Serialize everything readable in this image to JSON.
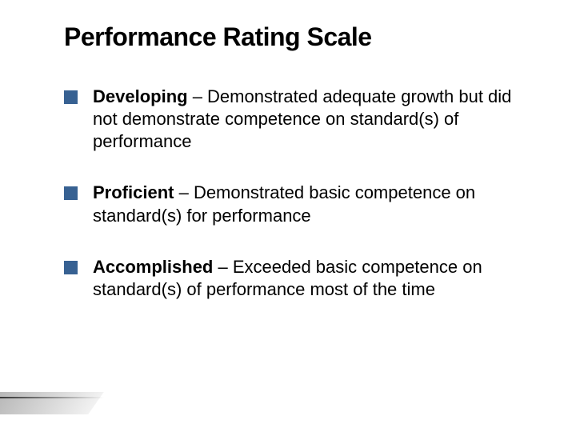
{
  "slide": {
    "title": "Performance Rating Scale",
    "title_color": "#000000",
    "title_fontsize": 32,
    "bullet_marker_color": "#376192",
    "bullet_marker_size": 17,
    "body_fontsize": 22,
    "body_color": "#000000",
    "background_color": "#ffffff",
    "items": [
      {
        "term": "Developing",
        "separator": " – ",
        "definition": "Demonstrated adequate growth but did not demonstrate competence on standard(s) of performance"
      },
      {
        "term": "Proficient",
        "separator": " – ",
        "definition": "Demonstrated basic competence on standard(s) for performance"
      },
      {
        "term": "Accomplished",
        "separator": " – ",
        "definition": "Exceeded basic competence on standard(s) of performance most of the time"
      }
    ]
  }
}
